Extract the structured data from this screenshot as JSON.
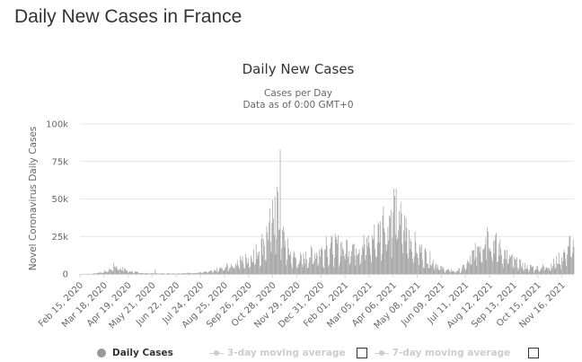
{
  "page": {
    "title": "Daily New Cases in France"
  },
  "colors": {
    "bars": "#999999",
    "grid": "#e6e6e6",
    "axis": "#ccd6eb",
    "muted": "#cccccc"
  },
  "chart_data": {
    "type": "bar",
    "title": "Daily New Cases",
    "subtitle": [
      "Cases per Day",
      "Data as of 0:00 GMT+0"
    ],
    "ylabel": "Novel Coronavirus Daily Cases",
    "xlabel": "",
    "ylim": [
      0,
      100000
    ],
    "y_ticks": [
      0,
      25000,
      50000,
      75000,
      100000
    ],
    "y_tick_labels": [
      "0",
      "25k",
      "50k",
      "75k",
      "100k"
    ],
    "x_range": [
      "2020-02-15",
      "2021-12-02"
    ],
    "x_tick_labels": [
      "Feb 15, 2020",
      "Mar 18, 2020",
      "Apr 19, 2020",
      "May 21, 2020",
      "Jun 22, 2020",
      "Jul 24, 2020",
      "Aug 25, 2020",
      "Sep 26, 2020",
      "Oct 28, 2020",
      "Nov 29, 2020",
      "Dec 31, 2020",
      "Feb 01, 2021",
      "Mar 05, 2021",
      "Apr 06, 2021",
      "May 08, 2021",
      "Jun 09, 2021",
      "Jul 11, 2021",
      "Aug 12, 2021",
      "Sep 13, 2021",
      "Oct 15, 2021",
      "Nov 16, 2021"
    ],
    "grid": true,
    "legend_position": "bottom",
    "series": [
      {
        "name": "Daily Cases",
        "visible": true,
        "approx_daily_profile": {
          "note": "estimated envelope (date, cases) of daily bars; bars fluctuate around it",
          "points": [
            [
              "2020-02-15",
              0
            ],
            [
              "2020-03-01",
              100
            ],
            [
              "2020-03-18",
              1500
            ],
            [
              "2020-03-28",
              4000
            ],
            [
              "2020-04-02",
              5500
            ],
            [
              "2020-04-12",
              3500
            ],
            [
              "2020-04-20",
              2000
            ],
            [
              "2020-05-05",
              800
            ],
            [
              "2020-05-21",
              400
            ],
            [
              "2020-06-22",
              400
            ],
            [
              "2020-07-24",
              1000
            ],
            [
              "2020-08-10",
              2000
            ],
            [
              "2020-08-25",
              4500
            ],
            [
              "2020-09-10",
              8000
            ],
            [
              "2020-09-26",
              11000
            ],
            [
              "2020-10-10",
              17000
            ],
            [
              "2020-10-20",
              27000
            ],
            [
              "2020-10-28",
              40000
            ],
            [
              "2020-11-02",
              45000
            ],
            [
              "2020-11-08",
              30000
            ],
            [
              "2020-11-18",
              16000
            ],
            [
              "2020-11-29",
              10000
            ],
            [
              "2020-12-10",
              11000
            ],
            [
              "2020-12-20",
              14000
            ],
            [
              "2020-12-31",
              16000
            ],
            [
              "2021-01-15",
              19000
            ],
            [
              "2021-02-01",
              20000
            ],
            [
              "2021-02-20",
              20000
            ],
            [
              "2021-03-05",
              22000
            ],
            [
              "2021-03-20",
              30000
            ],
            [
              "2021-04-01",
              40000
            ],
            [
              "2021-04-06",
              45000
            ],
            [
              "2021-04-20",
              33000
            ],
            [
              "2021-05-08",
              18000
            ],
            [
              "2021-05-25",
              11000
            ],
            [
              "2021-06-09",
              4000
            ],
            [
              "2021-06-25",
              2000
            ],
            [
              "2021-07-05",
              3000
            ],
            [
              "2021-07-15",
              8000
            ],
            [
              "2021-07-25",
              18000
            ],
            [
              "2021-08-05",
              25000
            ],
            [
              "2021-08-12",
              25000
            ],
            [
              "2021-08-25",
              18000
            ],
            [
              "2021-09-13",
              9000
            ],
            [
              "2021-09-30",
              5000
            ],
            [
              "2021-10-15",
              4500
            ],
            [
              "2021-11-01",
              6000
            ],
            [
              "2021-11-16",
              12000
            ],
            [
              "2021-11-25",
              20000
            ],
            [
              "2021-12-02",
              23000
            ]
          ]
        },
        "peaks": [
          [
            "2020-03-31",
            7500
          ],
          [
            "2020-04-12",
            4700
          ],
          [
            "2020-05-25",
            3300
          ],
          [
            "2020-10-27",
            34000
          ],
          [
            "2020-10-31",
            52000
          ],
          [
            "2020-11-03",
            58000
          ],
          [
            "2020-11-07",
            83000
          ],
          [
            "2021-01-07",
            25000
          ],
          [
            "2021-03-24",
            45000
          ],
          [
            "2021-04-07",
            57000
          ],
          [
            "2021-04-14",
            42000
          ],
          [
            "2021-08-09",
            31000
          ],
          [
            "2021-12-01",
            23000
          ]
        ]
      },
      {
        "name": "3-day moving average",
        "visible": false
      },
      {
        "name": "7-day moving average",
        "visible": false
      }
    ]
  },
  "legend": {
    "daily_cases": "Daily Cases",
    "ma3": "3-day moving average",
    "ma7": "7-day moving average"
  }
}
